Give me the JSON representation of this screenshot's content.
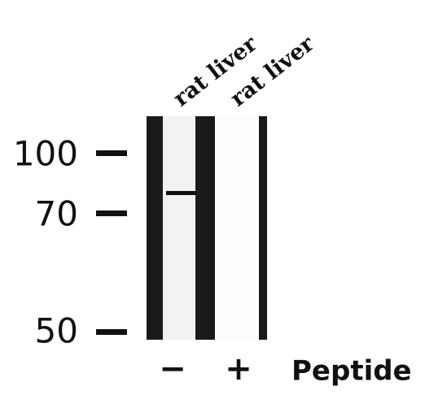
{
  "lanes": [
    {
      "label": "rat liver",
      "peptide": "−"
    },
    {
      "label": "rat liver",
      "peptide": "+"
    }
  ],
  "markers": [
    "100",
    "70",
    "50"
  ],
  "peptide_label": "Peptide"
}
